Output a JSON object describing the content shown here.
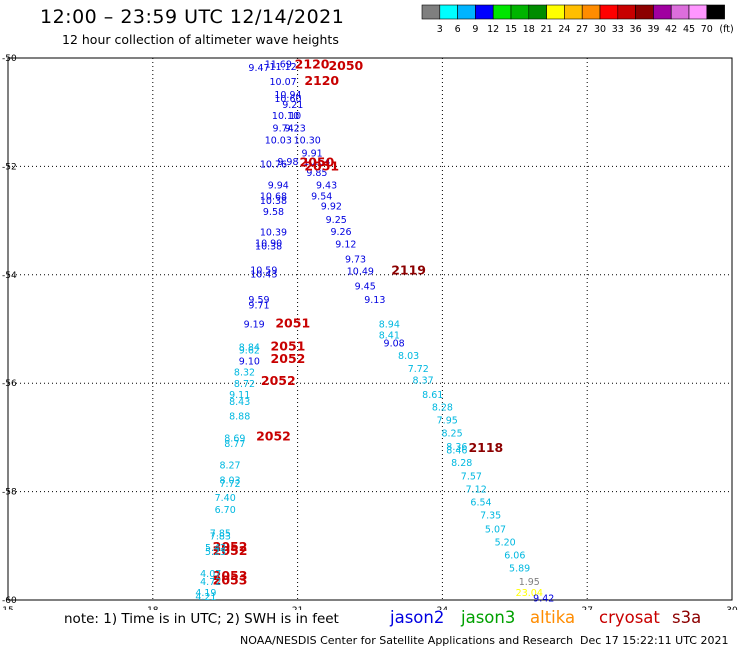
{
  "header": {
    "title": "12:00 – 23:59 UTC 12/14/2021",
    "subtitle": "12 hour collection of altimeter wave heights"
  },
  "color_scale": {
    "colors": [
      "#7f7f7f",
      "#00ffff",
      "#00b4ff",
      "#0000ff",
      "#00e600",
      "#00b400",
      "#008c00",
      "#ffff00",
      "#ffbe00",
      "#ff8c00",
      "#ff0000",
      "#c80000",
      "#8c0000",
      "#a000a0",
      "#dc6edc",
      "#ff96ff",
      "#000000"
    ],
    "labels": [
      "3",
      "6",
      "9",
      "12",
      "15",
      "18",
      "21",
      "24",
      "27",
      "30",
      "33",
      "36",
      "39",
      "42",
      "45",
      "70",
      "(ft)"
    ]
  },
  "chart_data": {
    "type": "scatter",
    "title": "12:00 – 23:59 UTC 12/14/2021",
    "subtitle": "12 hour collection of altimeter wave heights",
    "xlim": [
      15,
      30
    ],
    "ylim": [
      -60,
      -50
    ],
    "xticks": [
      "15",
      "18",
      "21",
      "24",
      "27",
      "30"
    ],
    "yticks": [
      "-50",
      "-52",
      "-54",
      "-56",
      "-58",
      "-60"
    ],
    "grid": true,
    "series": [
      {
        "name": "jason2",
        "color": "#0000e0",
        "labels": [
          {
            "x": 20.2,
            "y": -50.17,
            "t": "9.47"
          },
          {
            "x": 20.6,
            "y": -50.1,
            "t": "11.69"
          },
          {
            "x": 20.7,
            "y": -50.15,
            "t": "11.12"
          },
          {
            "x": 20.7,
            "y": -50.42,
            "t": "10.07"
          },
          {
            "x": 20.8,
            "y": -50.66,
            "t": "10.94"
          },
          {
            "x": 20.8,
            "y": -50.74,
            "t": "10.60"
          },
          {
            "x": 20.9,
            "y": -50.85,
            "t": "9.21"
          },
          {
            "x": 20.75,
            "y": -51.05,
            "t": "10.10"
          },
          {
            "x": 20.95,
            "y": -51.05,
            "t": "10"
          },
          {
            "x": 20.7,
            "y": -51.28,
            "t": "9.74"
          },
          {
            "x": 20.95,
            "y": -51.28,
            "t": "9.23"
          },
          {
            "x": 20.6,
            "y": -51.5,
            "t": "10.03"
          },
          {
            "x": 21.2,
            "y": -51.5,
            "t": "10.30"
          },
          {
            "x": 21.3,
            "y": -51.74,
            "t": "9.91"
          },
          {
            "x": 20.5,
            "y": -51.95,
            "t": "10.76"
          },
          {
            "x": 20.8,
            "y": -51.9,
            "t": "9.98"
          },
          {
            "x": 21.4,
            "y": -51.9,
            "t": "10.64"
          },
          {
            "x": 21.4,
            "y": -52.1,
            "t": "9.85"
          },
          {
            "x": 20.6,
            "y": -52.33,
            "t": "9.94"
          },
          {
            "x": 21.6,
            "y": -52.33,
            "t": "9.43"
          },
          {
            "x": 20.5,
            "y": -52.54,
            "t": "10.68"
          },
          {
            "x": 20.5,
            "y": -52.62,
            "t": "10.38"
          },
          {
            "x": 21.5,
            "y": -52.54,
            "t": "9.54"
          },
          {
            "x": 20.5,
            "y": -52.82,
            "t": "9.58"
          },
          {
            "x": 21.7,
            "y": -52.72,
            "t": "9.92"
          },
          {
            "x": 21.8,
            "y": -52.97,
            "t": "9.25"
          },
          {
            "x": 20.5,
            "y": -53.2,
            "t": "10.39"
          },
          {
            "x": 21.9,
            "y": -53.19,
            "t": "9.26"
          },
          {
            "x": 20.4,
            "y": -53.4,
            "t": "10.90"
          },
          {
            "x": 20.4,
            "y": -53.46,
            "t": "10.38"
          },
          {
            "x": 22.0,
            "y": -53.42,
            "t": "9.12"
          },
          {
            "x": 22.2,
            "y": -53.7,
            "t": "9.73"
          },
          {
            "x": 20.3,
            "y": -53.9,
            "t": "10.59"
          },
          {
            "x": 20.3,
            "y": -53.98,
            "t": "10.43"
          },
          {
            "x": 22.3,
            "y": -53.92,
            "t": "10.49"
          },
          {
            "x": 22.4,
            "y": -54.2,
            "t": "9.45"
          },
          {
            "x": 20.2,
            "y": -54.45,
            "t": "9.59"
          },
          {
            "x": 20.2,
            "y": -54.55,
            "t": "9.71"
          },
          {
            "x": 22.6,
            "y": -54.45,
            "t": "9.13"
          },
          {
            "x": 20.1,
            "y": -54.9,
            "t": "9.19"
          },
          {
            "x": 23.0,
            "y": -55.25,
            "t": "9.08"
          },
          {
            "x": 20.0,
            "y": -55.58,
            "t": "9.10"
          }
        ]
      },
      {
        "name": "jason3",
        "color": "#00a000",
        "labels": []
      },
      {
        "name": "altika",
        "color": "#ff8c00",
        "labels": []
      },
      {
        "name": "cryosat",
        "color": "#c80000",
        "labels": [
          {
            "x": 21.3,
            "y": -50.12,
            "t": "2120"
          },
          {
            "x": 22.0,
            "y": -50.15,
            "t": "2050"
          },
          {
            "x": 21.5,
            "y": -50.42,
            "t": "2120"
          },
          {
            "x": 21.4,
            "y": -51.93,
            "t": "2050"
          },
          {
            "x": 21.5,
            "y": -52.0,
            "t": "2051"
          },
          {
            "x": 20.9,
            "y": -54.9,
            "t": "2051"
          },
          {
            "x": 20.8,
            "y": -55.32,
            "t": "2051"
          },
          {
            "x": 20.8,
            "y": -55.55,
            "t": "2052"
          },
          {
            "x": 20.6,
            "y": -55.96,
            "t": "2052"
          },
          {
            "x": 20.5,
            "y": -56.98,
            "t": "2052"
          },
          {
            "x": 19.6,
            "y": -59.02,
            "t": "2052"
          },
          {
            "x": 19.6,
            "y": -59.1,
            "t": "2052"
          },
          {
            "x": 19.6,
            "y": -59.56,
            "t": "2053"
          },
          {
            "x": 19.6,
            "y": -59.64,
            "t": "2053"
          }
        ]
      },
      {
        "name": "s3a",
        "color": "#8c0000",
        "labels": [
          {
            "x": 23.3,
            "y": -53.92,
            "t": "2119"
          },
          {
            "x": 24.9,
            "y": -57.2,
            "t": "2118"
          }
        ]
      },
      {
        "name": "",
        "color": "#00b8e0",
        "labels": [
          {
            "x": 22.9,
            "y": -54.9,
            "t": "8.94"
          },
          {
            "x": 22.9,
            "y": -55.1,
            "t": "8.41"
          },
          {
            "x": 23.3,
            "y": -55.48,
            "t": "8.03"
          },
          {
            "x": 23.5,
            "y": -55.72,
            "t": "7.72"
          },
          {
            "x": 23.6,
            "y": -55.93,
            "t": "8.37"
          },
          {
            "x": 23.8,
            "y": -56.2,
            "t": "8.61"
          },
          {
            "x": 24.0,
            "y": -56.43,
            "t": "8.28"
          },
          {
            "x": 24.1,
            "y": -56.67,
            "t": "7.95"
          },
          {
            "x": 24.2,
            "y": -56.91,
            "t": "8.25"
          },
          {
            "x": 24.3,
            "y": -57.16,
            "t": "8.36"
          },
          {
            "x": 24.3,
            "y": -57.22,
            "t": "8.46"
          },
          {
            "x": 24.4,
            "y": -57.45,
            "t": "8.28"
          },
          {
            "x": 24.6,
            "y": -57.7,
            "t": "7.57"
          },
          {
            "x": 24.7,
            "y": -57.94,
            "t": "7.12"
          },
          {
            "x": 24.8,
            "y": -58.18,
            "t": "6.54"
          },
          {
            "x": 25.0,
            "y": -58.42,
            "t": "7.35"
          },
          {
            "x": 25.1,
            "y": -58.68,
            "t": "5.07"
          },
          {
            "x": 25.3,
            "y": -58.92,
            "t": "5.20"
          },
          {
            "x": 25.5,
            "y": -59.16,
            "t": "6.06"
          },
          {
            "x": 25.6,
            "y": -59.4,
            "t": "5.89"
          },
          {
            "x": 20.0,
            "y": -55.32,
            "t": "8.84"
          },
          {
            "x": 20.0,
            "y": -55.38,
            "t": "9.62"
          },
          {
            "x": 19.9,
            "y": -55.78,
            "t": "8.32"
          },
          {
            "x": 19.9,
            "y": -56.0,
            "t": "8.72"
          },
          {
            "x": 19.8,
            "y": -56.2,
            "t": "9.11"
          },
          {
            "x": 19.8,
            "y": -56.33,
            "t": "8.43"
          },
          {
            "x": 19.8,
            "y": -56.6,
            "t": "8.88"
          },
          {
            "x": 19.7,
            "y": -57.0,
            "t": "8.69"
          },
          {
            "x": 19.7,
            "y": -57.1,
            "t": "8.77"
          },
          {
            "x": 19.6,
            "y": -57.5,
            "t": "8.27"
          },
          {
            "x": 19.6,
            "y": -57.78,
            "t": "8.03"
          },
          {
            "x": 19.6,
            "y": -57.84,
            "t": "7.72"
          },
          {
            "x": 19.5,
            "y": -58.1,
            "t": "7.40"
          },
          {
            "x": 19.5,
            "y": -58.32,
            "t": "6.70"
          },
          {
            "x": 19.4,
            "y": -58.75,
            "t": "7.85"
          },
          {
            "x": 19.4,
            "y": -58.81,
            "t": "7.83"
          },
          {
            "x": 19.3,
            "y": -59.02,
            "t": "5.42"
          },
          {
            "x": 19.3,
            "y": -59.1,
            "t": "5.23"
          },
          {
            "x": 19.2,
            "y": -59.5,
            "t": "4.07"
          },
          {
            "x": 19.2,
            "y": -59.65,
            "t": "4.72"
          },
          {
            "x": 19.1,
            "y": -59.85,
            "t": "4.19"
          },
          {
            "x": 19.1,
            "y": -59.93,
            "t": "4.21"
          }
        ]
      },
      {
        "name": "",
        "color": "#7f7f7f",
        "labels": [
          {
            "x": 25.8,
            "y": -59.65,
            "t": "1.95"
          }
        ]
      },
      {
        "name": "",
        "color": "#ffff00",
        "labels": [
          {
            "x": 25.8,
            "y": -59.85,
            "t": "23.04"
          }
        ]
      },
      {
        "name": "",
        "color": "#0000e0",
        "labels": [
          {
            "x": 26.1,
            "y": -59.95,
            "t": "9.42"
          }
        ]
      }
    ]
  },
  "legend": {
    "note": "note: 1) Time is in UTC; 2) SWH is in feet",
    "jason2": {
      "label": "jason2",
      "color": "#0000e0"
    },
    "jason3": {
      "label": "jason3",
      "color": "#00a000"
    },
    "altika": {
      "label": "altika",
      "color": "#ff8c00"
    },
    "cryosat": {
      "label": "cryosat",
      "color": "#c80000"
    },
    "s3a": {
      "label": "s3a",
      "color": "#8c0000"
    }
  },
  "footer": {
    "credit": "NOAA/NESDIS Center for Satellite Applications and Research",
    "timestamp": "Dec 17 15:22:11 UTC 2021"
  }
}
